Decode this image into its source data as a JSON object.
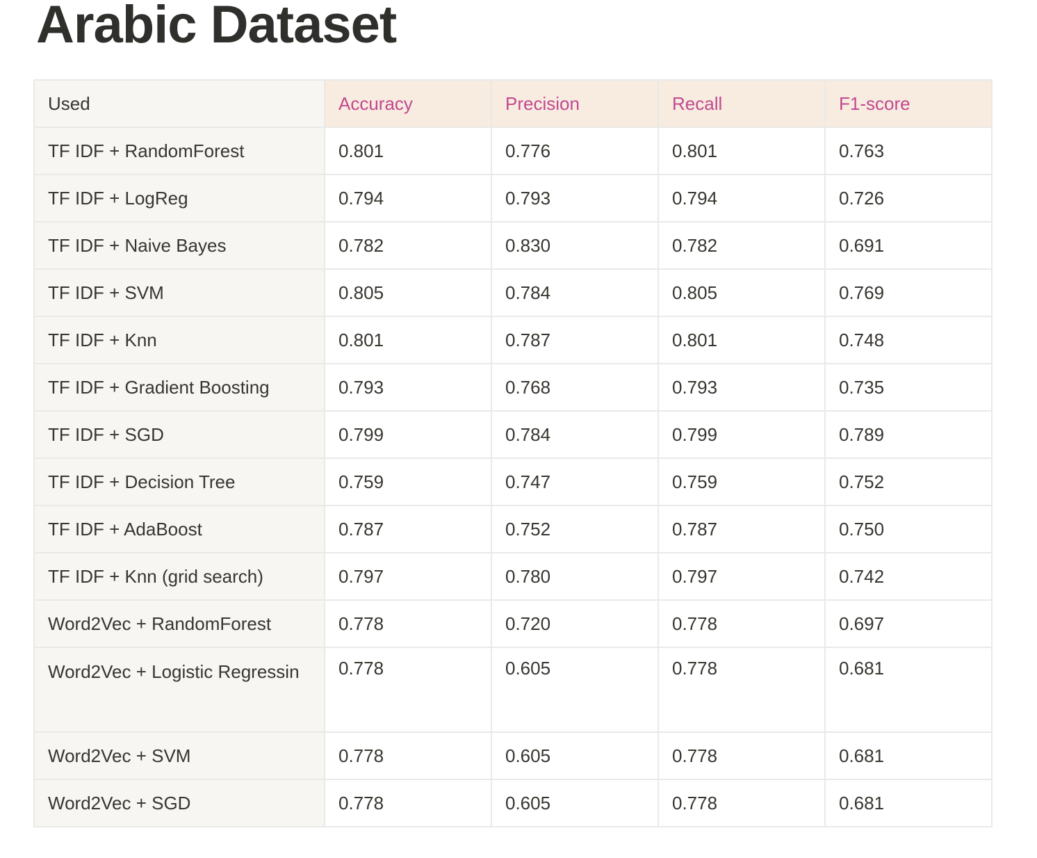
{
  "title": "Arabic Dataset",
  "table": {
    "headers": [
      "Used",
      "Accuracy",
      "Precision",
      "Recall",
      "F1-score"
    ],
    "rows": [
      {
        "name": "TF IDF + RandomForest",
        "values": [
          "0.801",
          "0.776",
          "0.801",
          "0.763"
        ],
        "styles": [
          "bold",
          "",
          "bold",
          ""
        ]
      },
      {
        "name": "TF IDF + LogReg",
        "values": [
          "0.794",
          "0.793",
          "0.794",
          "0.726"
        ],
        "styles": [
          "",
          "",
          "",
          ""
        ]
      },
      {
        "name": "TF IDF + Naive Bayes",
        "values": [
          "0.782",
          "0.830",
          "0.782",
          "0.691"
        ],
        "styles": [
          "",
          "red",
          "",
          ""
        ]
      },
      {
        "name": "TF IDF + SVM",
        "values": [
          "0.805",
          "0.784",
          "0.805",
          "0.769"
        ],
        "styles": [
          "red",
          "",
          "red",
          ""
        ]
      },
      {
        "name": "TF IDF + Knn",
        "values": [
          "0.801",
          "0.787",
          "0.801",
          "0.748"
        ],
        "styles": [
          "bold",
          "",
          "bold",
          ""
        ]
      },
      {
        "name": "TF IDF + Gradient Boosting",
        "values": [
          "0.793",
          "0.768",
          "0.793",
          "0.735"
        ],
        "styles": [
          "",
          "",
          "",
          ""
        ]
      },
      {
        "name": "TF IDF + SGD",
        "values": [
          "0.799",
          "0.784",
          "0.799",
          "0.789"
        ],
        "styles": [
          "",
          "",
          "",
          ""
        ]
      },
      {
        "name": "TF IDF + Decision Tree",
        "values": [
          "0.759",
          "0.747",
          "0.759",
          "0.752"
        ],
        "styles": [
          "",
          "",
          "",
          ""
        ]
      },
      {
        "name": "TF IDF + AdaBoost",
        "values": [
          "0.787",
          "0.752",
          "0.787",
          "0.750"
        ],
        "styles": [
          "",
          "",
          "",
          ""
        ]
      },
      {
        "name": "TF IDF + Knn (grid search)",
        "values": [
          "0.797",
          "0.780",
          "0.797",
          "0.742"
        ],
        "styles": [
          "",
          "",
          "",
          ""
        ]
      },
      {
        "name": "Word2Vec + RandomForest",
        "values": [
          "0.778",
          "0.720",
          "0.778",
          "0.697"
        ],
        "styles": [
          "",
          "",
          "",
          ""
        ]
      },
      {
        "name": "Word2Vec + Logistic Regressin",
        "values": [
          "0.778",
          "0.605",
          "0.778",
          "0.681"
        ],
        "styles": [
          "",
          "",
          "",
          ""
        ],
        "tall": true
      },
      {
        "name": "Word2Vec + SVM",
        "values": [
          "0.778",
          "0.605",
          "0.778",
          "0.681"
        ],
        "styles": [
          "",
          "",
          "",
          ""
        ]
      },
      {
        "name": "Word2Vec + SGD",
        "values": [
          "0.778",
          "0.605",
          "0.778",
          "0.681"
        ],
        "styles": [
          "",
          "",
          "",
          ""
        ]
      }
    ]
  },
  "colors": {
    "header_accent_bg": "#f8ebe0",
    "header_accent_text": "#c1498f",
    "row_header_bg": "#f7f6f3",
    "best_value_red": "#c9493f",
    "text": "#37352f",
    "border": "#e9e9e7"
  }
}
